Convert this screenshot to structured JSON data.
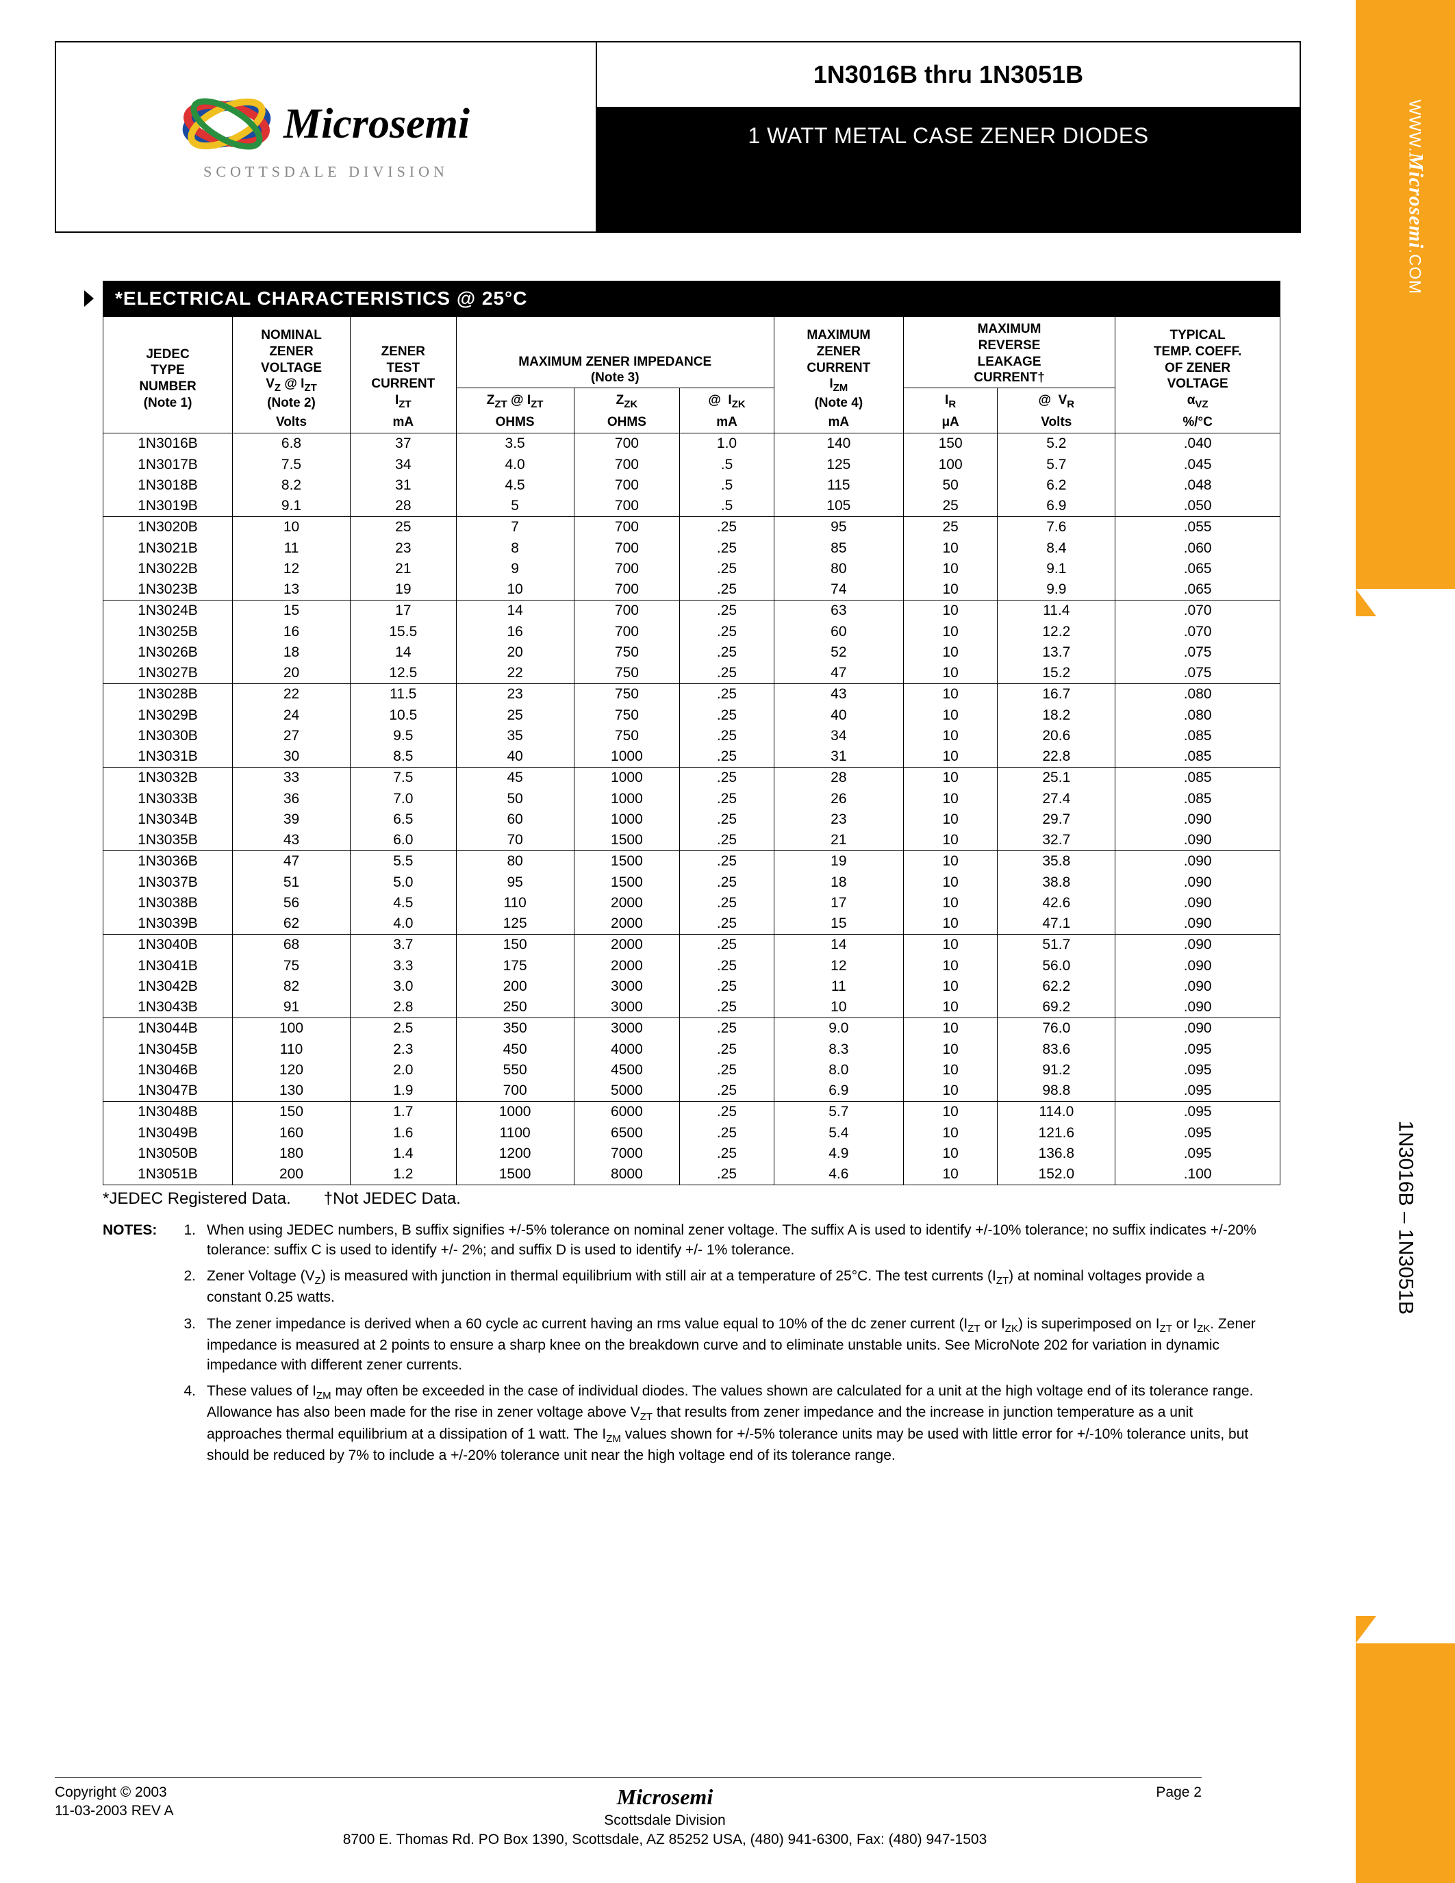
{
  "header": {
    "brand_text": "Microsemi",
    "division": "SCOTTSDALE DIVISION",
    "part_range": "1N3016B thru 1N3051B",
    "subtitle": "1 WATT METAL CASE ZENER DIODES"
  },
  "sidebar": {
    "url_prefix": "WWW.",
    "url_bold": "Microsemi",
    "url_suffix": ".COM",
    "part_label": "1N3016B – 1N3051B"
  },
  "section_title": "*ELECTRICAL CHARACTERISTICS @ 25°C",
  "table": {
    "header_groups": [
      {
        "lines": [
          "JEDEC",
          "TYPE",
          "NUMBER",
          "(Note 1)"
        ],
        "unit": ""
      },
      {
        "lines": [
          "NOMINAL",
          "ZENER",
          "VOLTAGE",
          "V_Z @ I_ZT",
          "(Note 2)"
        ],
        "unit": "Volts"
      },
      {
        "lines": [
          "ZENER",
          "TEST",
          "CURRENT",
          "I_ZT"
        ],
        "unit": "mA"
      },
      {
        "lines": [
          "MAXIMUM ZENER IMPEDANCE",
          "(Note 3)"
        ],
        "sub": [
          {
            "label": "Z_ZT @ I_ZT",
            "unit": "OHMS"
          },
          {
            "label": "Z_ZK",
            "unit": "OHMS"
          },
          {
            "label": "@ I_ZK",
            "unit": "mA"
          }
        ]
      },
      {
        "lines": [
          "MAXIMUM",
          "ZENER",
          "CURRENT",
          "I_ZM",
          "(Note 4)"
        ],
        "unit": "mA"
      },
      {
        "lines": [
          "MAXIMUM",
          "REVERSE",
          "LEAKAGE",
          "CURRENT†"
        ],
        "sub": [
          {
            "label": "I_R",
            "unit": "μA"
          },
          {
            "label": "@ V_R",
            "unit": "Volts"
          }
        ]
      },
      {
        "lines": [
          "TYPICAL",
          "TEMP. COEFF.",
          "OF ZENER",
          "VOLTAGE",
          "α_VZ"
        ],
        "unit": "%/°C"
      }
    ],
    "h1_col1": "JEDEC<br>TYPE<br>NUMBER<br>(Note 1)",
    "h1_col2": "NOMINAL<br>ZENER<br>VOLTAGE<br>V<span class='sub'>Z</span> @ I<span class='sub'>ZT</span><br>(Note 2)",
    "h1_col3": "ZENER<br>TEST<br>CURRENT<br>I<span class='sub'>ZT</span>",
    "h1_col4": "MAXIMUM ZENER IMPEDANCE<br>(Note 3)",
    "h1_col5": "MAXIMUM<br>ZENER<br>CURRENT<br>I<span class='sub'>ZM</span><br>(Note 4)",
    "h1_col6": "MAXIMUM<br>REVERSE<br>LEAKAGE<br>CURRENT†",
    "h1_col7": "TYPICAL<br>TEMP. COEFF.<br>OF ZENER<br>VOLTAGE<br>α<span class='sub'>VZ</span>",
    "sub_zzt": "Z<span class='sub'>ZT</span> @ I<span class='sub'>ZT</span>",
    "sub_zzk": "Z<span class='sub'>ZK</span>",
    "sub_izk": "@&nbsp;&nbsp;I<span class='sub'>ZK</span>",
    "sub_ir": "I<span class='sub'>R</span>",
    "sub_vr": "@&nbsp;&nbsp;V<span class='sub'>R</span>",
    "units": [
      "",
      "Volts",
      "mA",
      "OHMS",
      "OHMS",
      "mA",
      "mA",
      "μA",
      "Volts",
      "%/°C"
    ],
    "group_ends": [
      3,
      7,
      11,
      15,
      19,
      23,
      27,
      31,
      35
    ],
    "rows": [
      [
        "1N3016B",
        "6.8",
        "37",
        "3.5",
        "700",
        "1.0",
        "140",
        "150",
        "5.2",
        ".040"
      ],
      [
        "1N3017B",
        "7.5",
        "34",
        "4.0",
        "700",
        ".5",
        "125",
        "100",
        "5.7",
        ".045"
      ],
      [
        "1N3018B",
        "8.2",
        "31",
        "4.5",
        "700",
        ".5",
        "115",
        "50",
        "6.2",
        ".048"
      ],
      [
        "1N3019B",
        "9.1",
        "28",
        "5",
        "700",
        ".5",
        "105",
        "25",
        "6.9",
        ".050"
      ],
      [
        "1N3020B",
        "10",
        "25",
        "7",
        "700",
        ".25",
        "95",
        "25",
        "7.6",
        ".055"
      ],
      [
        "1N3021B",
        "11",
        "23",
        "8",
        "700",
        ".25",
        "85",
        "10",
        "8.4",
        ".060"
      ],
      [
        "1N3022B",
        "12",
        "21",
        "9",
        "700",
        ".25",
        "80",
        "10",
        "9.1",
        ".065"
      ],
      [
        "1N3023B",
        "13",
        "19",
        "10",
        "700",
        ".25",
        "74",
        "10",
        "9.9",
        ".065"
      ],
      [
        "1N3024B",
        "15",
        "17",
        "14",
        "700",
        ".25",
        "63",
        "10",
        "11.4",
        ".070"
      ],
      [
        "1N3025B",
        "16",
        "15.5",
        "16",
        "700",
        ".25",
        "60",
        "10",
        "12.2",
        ".070"
      ],
      [
        "1N3026B",
        "18",
        "14",
        "20",
        "750",
        ".25",
        "52",
        "10",
        "13.7",
        ".075"
      ],
      [
        "1N3027B",
        "20",
        "12.5",
        "22",
        "750",
        ".25",
        "47",
        "10",
        "15.2",
        ".075"
      ],
      [
        "1N3028B",
        "22",
        "11.5",
        "23",
        "750",
        ".25",
        "43",
        "10",
        "16.7",
        ".080"
      ],
      [
        "1N3029B",
        "24",
        "10.5",
        "25",
        "750",
        ".25",
        "40",
        "10",
        "18.2",
        ".080"
      ],
      [
        "1N3030B",
        "27",
        "9.5",
        "35",
        "750",
        ".25",
        "34",
        "10",
        "20.6",
        ".085"
      ],
      [
        "1N3031B",
        "30",
        "8.5",
        "40",
        "1000",
        ".25",
        "31",
        "10",
        "22.8",
        ".085"
      ],
      [
        "1N3032B",
        "33",
        "7.5",
        "45",
        "1000",
        ".25",
        "28",
        "10",
        "25.1",
        ".085"
      ],
      [
        "1N3033B",
        "36",
        "7.0",
        "50",
        "1000",
        ".25",
        "26",
        "10",
        "27.4",
        ".085"
      ],
      [
        "1N3034B",
        "39",
        "6.5",
        "60",
        "1000",
        ".25",
        "23",
        "10",
        "29.7",
        ".090"
      ],
      [
        "1N3035B",
        "43",
        "6.0",
        "70",
        "1500",
        ".25",
        "21",
        "10",
        "32.7",
        ".090"
      ],
      [
        "1N3036B",
        "47",
        "5.5",
        "80",
        "1500",
        ".25",
        "19",
        "10",
        "35.8",
        ".090"
      ],
      [
        "1N3037B",
        "51",
        "5.0",
        "95",
        "1500",
        ".25",
        "18",
        "10",
        "38.8",
        ".090"
      ],
      [
        "1N3038B",
        "56",
        "4.5",
        "110",
        "2000",
        ".25",
        "17",
        "10",
        "42.6",
        ".090"
      ],
      [
        "1N3039B",
        "62",
        "4.0",
        "125",
        "2000",
        ".25",
        "15",
        "10",
        "47.1",
        ".090"
      ],
      [
        "1N3040B",
        "68",
        "3.7",
        "150",
        "2000",
        ".25",
        "14",
        "10",
        "51.7",
        ".090"
      ],
      [
        "1N3041B",
        "75",
        "3.3",
        "175",
        "2000",
        ".25",
        "12",
        "10",
        "56.0",
        ".090"
      ],
      [
        "1N3042B",
        "82",
        "3.0",
        "200",
        "3000",
        ".25",
        "11",
        "10",
        "62.2",
        ".090"
      ],
      [
        "1N3043B",
        "91",
        "2.8",
        "250",
        "3000",
        ".25",
        "10",
        "10",
        "69.2",
        ".090"
      ],
      [
        "1N3044B",
        "100",
        "2.5",
        "350",
        "3000",
        ".25",
        "9.0",
        "10",
        "76.0",
        ".090"
      ],
      [
        "1N3045B",
        "110",
        "2.3",
        "450",
        "4000",
        ".25",
        "8.3",
        "10",
        "83.6",
        ".095"
      ],
      [
        "1N3046B",
        "120",
        "2.0",
        "550",
        "4500",
        ".25",
        "8.0",
        "10",
        "91.2",
        ".095"
      ],
      [
        "1N3047B",
        "130",
        "1.9",
        "700",
        "5000",
        ".25",
        "6.9",
        "10",
        "98.8",
        ".095"
      ],
      [
        "1N3048B",
        "150",
        "1.7",
        "1000",
        "6000",
        ".25",
        "5.7",
        "10",
        "114.0",
        ".095"
      ],
      [
        "1N3049B",
        "160",
        "1.6",
        "1100",
        "6500",
        ".25",
        "5.4",
        "10",
        "121.6",
        ".095"
      ],
      [
        "1N3050B",
        "180",
        "1.4",
        "1200",
        "7000",
        ".25",
        "4.9",
        "10",
        "136.8",
        ".095"
      ],
      [
        "1N3051B",
        "200",
        "1.2",
        "1500",
        "8000",
        ".25",
        "4.6",
        "10",
        "152.0",
        ".100"
      ]
    ],
    "col_widths": [
      "11%",
      "10%",
      "9%",
      "10%",
      "9%",
      "8%",
      "11%",
      "8%",
      "10%",
      "14%"
    ]
  },
  "footnote_line": "*JEDEC Registered Data.  †Not JEDEC Data.",
  "notes_label": "NOTES:",
  "notes": [
    "When using JEDEC numbers, B suffix signifies +/-5% tolerance on nominal zener voltage.  The suffix A is used to identify +/-10% tolerance; no suffix indicates +/-20% tolerance: suffix C is used to identify +/- 2%; and suffix D is used to identify +/- 1% tolerance.",
    "Zener Voltage (V_Z) is measured with junction in thermal equilibrium with still air at a temperature of 25°C.  The test currents (I_ZT) at nominal voltages provide a constant 0.25 watts.",
    "The zener impedance is derived when a 60 cycle ac current having an rms value equal to 10% of the dc zener current (I_ZT or I_ZK) is superimposed on I_ZT or I_ZK.  Zener impedance is measured at 2 points to ensure a sharp knee on the breakdown curve and to eliminate unstable units.  See MicroNote 202 for variation in dynamic impedance with different zener currents.",
    "These values of I_ZM may often be exceeded in the case of individual diodes.  The values shown are calculated for a unit at the high voltage end of its tolerance range.  Allowance has also been made for the rise in zener voltage above V_ZT that results from zener impedance and the increase in junction temperature as a unit approaches thermal equilibrium at a dissipation of 1 watt.  The I_ZM values shown for +/-5% tolerance units may be used with little error for +/-10% tolerance units, but should be reduced by 7% to include a +/-20% tolerance unit near the high voltage end of its tolerance range."
  ],
  "footer": {
    "copyright": "Copyright © 2003",
    "rev": "11-03-2003  REV A",
    "brand": "Microsemi",
    "division": "Scottsdale Division",
    "address": "8700 E. Thomas Rd. PO Box 1390, Scottsdale, AZ 85252 USA, (480) 941-6300, Fax: (480) 947-1503",
    "page": "Page 2"
  },
  "colors": {
    "orange": "#f7a31c",
    "black": "#000000",
    "white": "#ffffff",
    "gray_text": "#888888"
  }
}
